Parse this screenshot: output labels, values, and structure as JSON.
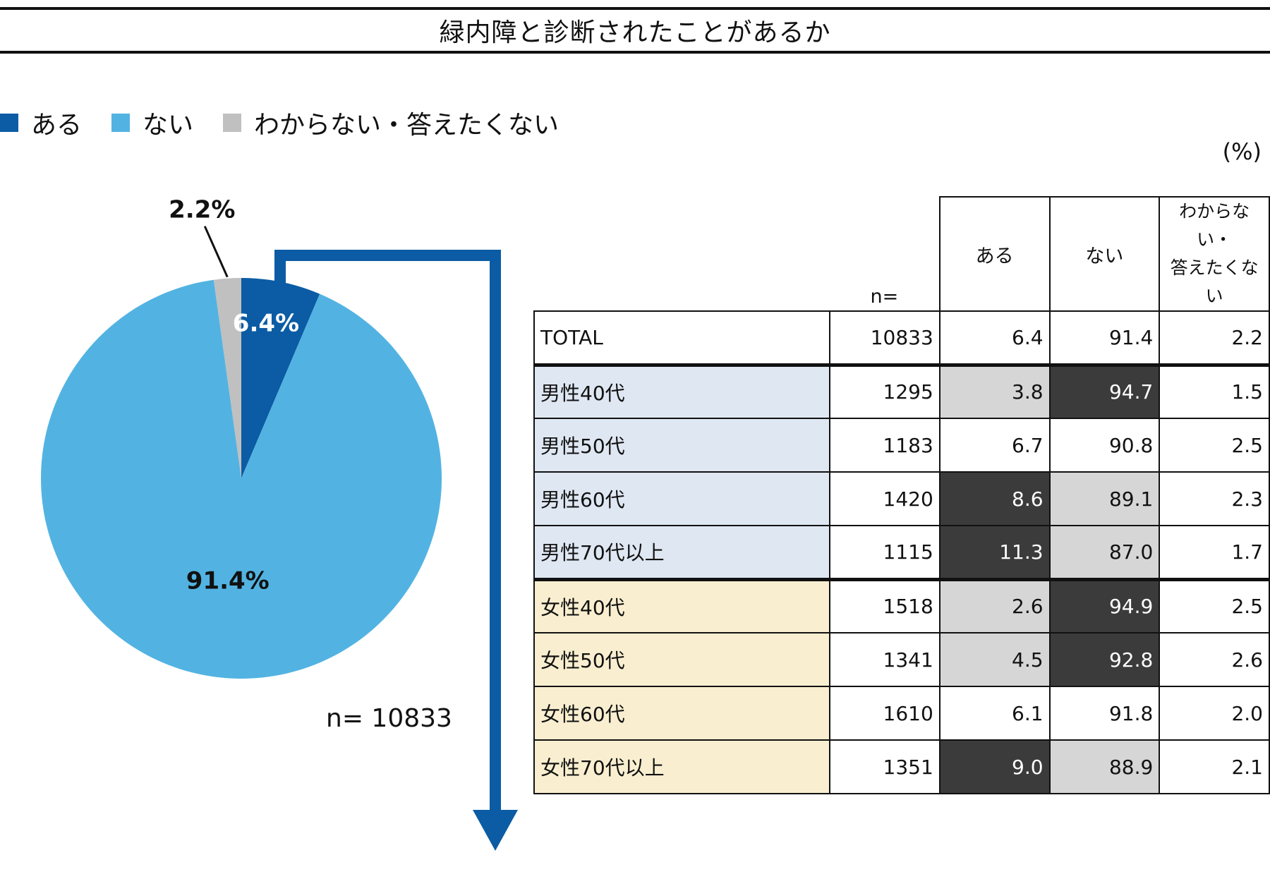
{
  "title": "緑内障と診断されたことがあるか",
  "legend": [
    {
      "label": "ある",
      "color": "#0b5ca4"
    },
    {
      "label": "ない",
      "color": "#52b3e2"
    },
    {
      "label": "わからない・答えたくない",
      "color": "#c0c0c0"
    }
  ],
  "unit": "(%)",
  "pie_n_label": "n= 10833",
  "table": {
    "headers": {
      "n": "n=",
      "a": "ある",
      "b": "ない",
      "c1": "わからない・",
      "c2": "答えたくない"
    },
    "rows": [
      {
        "label": "TOTAL",
        "n": "10833",
        "a": "6.4",
        "b": "91.4",
        "c": "2.2"
      },
      {
        "label": "男性40代",
        "n": "1295",
        "a": "3.8",
        "b": "94.7",
        "c": "1.5"
      },
      {
        "label": "男性50代",
        "n": "1183",
        "a": "6.7",
        "b": "90.8",
        "c": "2.5"
      },
      {
        "label": "男性60代",
        "n": "1420",
        "a": "8.6",
        "b": "89.1",
        "c": "2.3"
      },
      {
        "label": "男性70代以上",
        "n": "1115",
        "a": "11.3",
        "b": "87.0",
        "c": "1.7"
      },
      {
        "label": "女性40代",
        "n": "1518",
        "a": "2.6",
        "b": "94.9",
        "c": "2.5"
      },
      {
        "label": "女性50代",
        "n": "1341",
        "a": "4.5",
        "b": "92.8",
        "c": "2.6"
      },
      {
        "label": "女性60代",
        "n": "1610",
        "a": "6.1",
        "b": "91.8",
        "c": "2.0"
      },
      {
        "label": "女性70代以上",
        "n": "1351",
        "a": "9.0",
        "b": "88.9",
        "c": "2.1"
      }
    ]
  },
  "chart_data": {
    "type": "pie",
    "title": "緑内障と診断されたことがあるか",
    "n": 10833,
    "slices": [
      {
        "label": "ある",
        "value": 6.4,
        "display": "6.4%",
        "color": "#0b5ca4"
      },
      {
        "label": "ない",
        "value": 91.4,
        "display": "91.4%",
        "color": "#52b3e2"
      },
      {
        "label": "わからない・答えたくない",
        "value": 2.2,
        "display": "2.2%",
        "color": "#c0c0c0"
      }
    ],
    "legend_position": "top-left"
  },
  "arrow_color": "#0b5ca4"
}
